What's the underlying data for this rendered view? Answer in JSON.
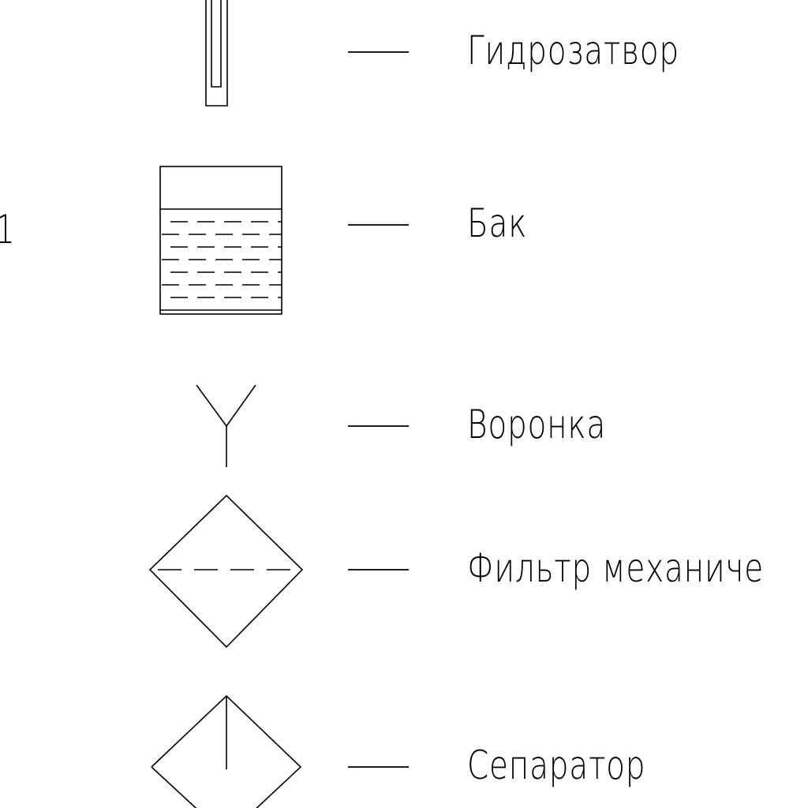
{
  "legend": {
    "edge_mark": "1",
    "items": [
      {
        "symbol": "hydraulic-seal",
        "label": "Гидрозатвор"
      },
      {
        "symbol": "tank",
        "label": "Бак"
      },
      {
        "symbol": "funnel",
        "label": "Воронка"
      },
      {
        "symbol": "mechanical-filter",
        "label": "Фильтр механиче"
      },
      {
        "symbol": "separator",
        "label": "Сепаратор"
      }
    ]
  },
  "colors": {
    "line": "#000000",
    "background": "#ffffff"
  }
}
